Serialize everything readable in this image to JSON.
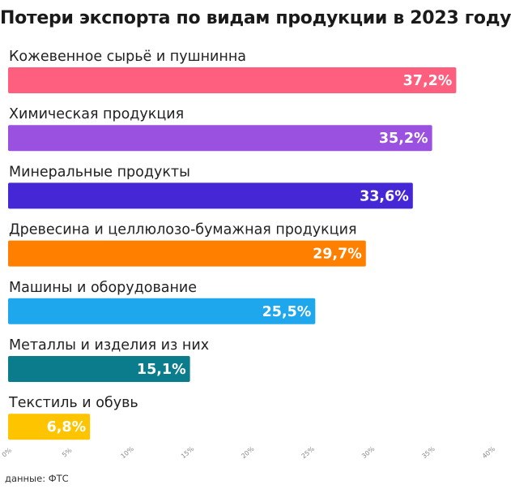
{
  "chart_data": {
    "type": "bar",
    "orientation": "horizontal",
    "title": "Потери экспорта по видам продукции в 2023 году",
    "categories": [
      "Кожевенное сырьё и пушнинна",
      "Химическая продукция",
      "Минеральные продукты",
      "Древесина и целлюлозо-бумажная продукция",
      "Машины и оборудование",
      "Металлы и изделия из них",
      "Текстиль и обувь"
    ],
    "values": [
      37.2,
      35.2,
      33.6,
      29.7,
      25.5,
      15.1,
      6.8
    ],
    "value_labels": [
      "37,2%",
      "35,2%",
      "33,6%",
      "29,7%",
      "25,5%",
      "15,1%",
      "6,8%"
    ],
    "colors": [
      "#ff5f7e",
      "#9b51e0",
      "#4527d6",
      "#ff8000",
      "#1ea7ec",
      "#0a7c8c",
      "#ffc400"
    ],
    "xlim": [
      0,
      40
    ],
    "ticks": [
      "0%",
      "5%",
      "10%",
      "15%",
      "20%",
      "25%",
      "30%",
      "35%",
      "40%"
    ],
    "grid": false
  },
  "source": "данные: ФТС"
}
